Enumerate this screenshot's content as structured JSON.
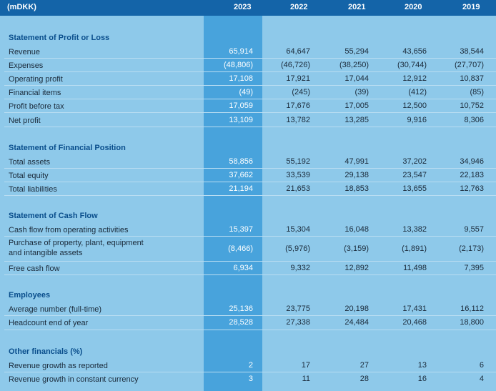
{
  "header": {
    "unit": "(mDKK)",
    "years": [
      "2023",
      "2022",
      "2021",
      "2020",
      "2019"
    ]
  },
  "sections": [
    {
      "title": "Statement of Profit or Loss",
      "rows": [
        {
          "label": "Revenue",
          "values": [
            "65,914",
            "64,647",
            "55,294",
            "43,656",
            "38,544"
          ]
        },
        {
          "label": "Expenses",
          "values": [
            "(48,806)",
            "(46,726)",
            "(38,250)",
            "(30,744)",
            "(27,707)"
          ]
        },
        {
          "label": "Operating profit",
          "values": [
            "17,108",
            "17,921",
            "17,044",
            "12,912",
            "10,837"
          ]
        },
        {
          "label": "Financial items",
          "values": [
            "(49)",
            "(245)",
            "(39)",
            "(412)",
            "(85)"
          ]
        },
        {
          "label": "Profit before tax",
          "values": [
            "17,059",
            "17,676",
            "17,005",
            "12,500",
            "10,752"
          ]
        },
        {
          "label": "Net profit",
          "values": [
            "13,109",
            "13,782",
            "13,285",
            "9,916",
            "8,306"
          ]
        }
      ]
    },
    {
      "title": "Statement of Financial Position",
      "rows": [
        {
          "label": "Total assets",
          "values": [
            "58,856",
            "55,192",
            "47,991",
            "37,202",
            "34,946"
          ]
        },
        {
          "label": "Total equity",
          "values": [
            "37,662",
            "33,539",
            "29,138",
            "23,547",
            "22,183"
          ]
        },
        {
          "label": "Total liabilities",
          "values": [
            "21,194",
            "21,653",
            "18,853",
            "13,655",
            "12,763"
          ]
        }
      ]
    },
    {
      "title": "Statement of Cash Flow",
      "rows": [
        {
          "label": "Cash flow from operating activities",
          "values": [
            "15,397",
            "15,304",
            "16,048",
            "13,382",
            "9,557"
          ]
        },
        {
          "label": "Purchase of property, plant, equipment\nand intangible assets",
          "values": [
            "(8,466)",
            "(5,976)",
            "(3,159)",
            "(1,891)",
            "(2,173)"
          ]
        },
        {
          "label": "Free cash flow",
          "values": [
            "6,934",
            "9,332",
            "12,892",
            "11,498",
            "7,395"
          ]
        }
      ]
    },
    {
      "title": "Employees",
      "rows": [
        {
          "label": "Average number (full-time)",
          "values": [
            "25,136",
            "23,775",
            "20,198",
            "17,431",
            "16,112"
          ]
        },
        {
          "label": "Headcount end of year",
          "values": [
            "28,528",
            "27,338",
            "24,484",
            "20,468",
            "18,800"
          ]
        }
      ]
    },
    {
      "title": "Other financials (%)",
      "rows": [
        {
          "label": "Revenue growth as reported",
          "values": [
            "2",
            "17",
            "27",
            "13",
            "6"
          ]
        },
        {
          "label": "Revenue growth in constant currency",
          "values": [
            "3",
            "11",
            "28",
            "16",
            "4"
          ]
        }
      ]
    }
  ]
}
